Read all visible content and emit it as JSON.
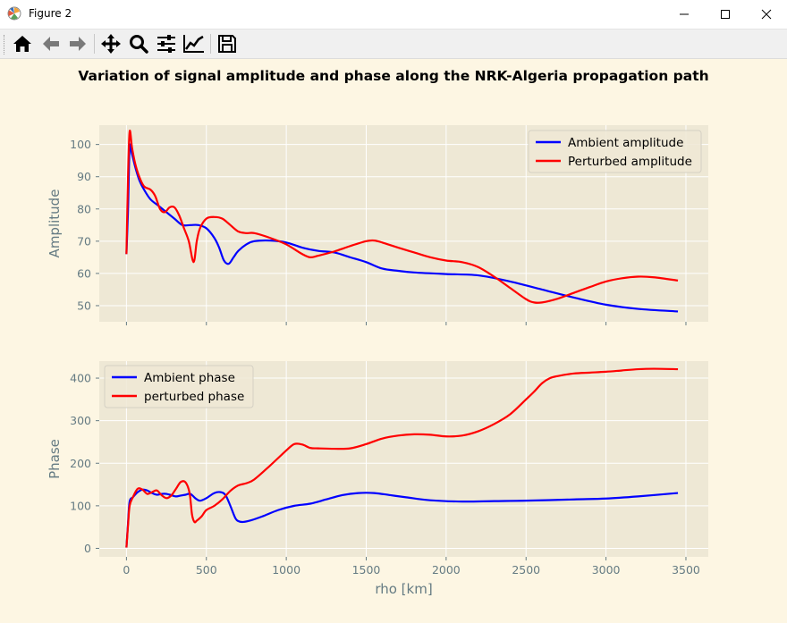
{
  "window": {
    "title": "Figure 2",
    "icons": [
      "matplotlib-logo-icon",
      "minimize-icon",
      "maximize-icon",
      "close-icon"
    ]
  },
  "toolbar": {
    "buttons": [
      {
        "name": "home-button",
        "icon": "home-icon"
      },
      {
        "name": "back-button",
        "icon": "arrow-left-icon"
      },
      {
        "name": "forward-button",
        "icon": "arrow-right-icon"
      },
      {
        "name": "pan-button",
        "icon": "move-icon"
      },
      {
        "name": "zoom-button",
        "icon": "magnifier-icon"
      },
      {
        "name": "subplots-button",
        "icon": "sliders-icon"
      },
      {
        "name": "axes-button",
        "icon": "line-chart-icon"
      },
      {
        "name": "save-button",
        "icon": "floppy-disk-icon"
      }
    ]
  },
  "colors": {
    "figure_bg": "#fdf6e3",
    "axes_bg": "#eee8d5",
    "grid": "#ffffff",
    "tick_text": "#657b83",
    "ambient": "#0000ff",
    "perturbed": "#ff0000"
  },
  "chart_data": [
    {
      "type": "line",
      "title": "Variation of signal amplitude and phase along the NRK-Algeria propagation path",
      "xlabel": "",
      "ylabel": "Amplitude",
      "xlim": [
        -170,
        3640
      ],
      "ylim": [
        45,
        106
      ],
      "xticks": [
        0,
        500,
        1000,
        1500,
        2000,
        2500,
        3000,
        3500
      ],
      "xticklabels_visible": false,
      "yticks": [
        50,
        60,
        70,
        80,
        90,
        100
      ],
      "yticklabels": [
        "50",
        "60",
        "70",
        "80",
        "90",
        "100"
      ],
      "grid": true,
      "legend": "top-right",
      "series": [
        {
          "name": "Ambient amplitude",
          "color": "#0000ff",
          "x": [
            0,
            10,
            20,
            35,
            55,
            80,
            110,
            150,
            200,
            250,
            300,
            350,
            400,
            450,
            500,
            550,
            580,
            610,
            640,
            670,
            700,
            750,
            800,
            900,
            1000,
            1100,
            1200,
            1300,
            1400,
            1500,
            1600,
            1700,
            1800,
            2000,
            2200,
            2400,
            2600,
            2800,
            3000,
            3200,
            3450
          ],
          "y": [
            66,
            80,
            99,
            97,
            93,
            89,
            86,
            83,
            81,
            79,
            77,
            75,
            75,
            75,
            74,
            71,
            68,
            64,
            63,
            65,
            67,
            69,
            70,
            70.2,
            69.6,
            68,
            67,
            66.5,
            65,
            63.5,
            61.5,
            60.8,
            60.3,
            59.8,
            59.4,
            57.5,
            55,
            52.5,
            50.3,
            49,
            48.2
          ]
        },
        {
          "name": "Perturbed amplitude",
          "color": "#ff0000",
          "x": [
            0,
            10,
            20,
            35,
            55,
            80,
            110,
            150,
            180,
            210,
            240,
            270,
            300,
            330,
            360,
            390,
            420,
            440,
            460,
            500,
            550,
            600,
            650,
            700,
            750,
            800,
            900,
            1000,
            1100,
            1150,
            1200,
            1300,
            1400,
            1500,
            1550,
            1600,
            1700,
            1800,
            1900,
            2000,
            2100,
            2200,
            2300,
            2400,
            2500,
            2550,
            2600,
            2700,
            2800,
            2900,
            3000,
            3100,
            3200,
            3300,
            3450
          ],
          "y": [
            66,
            90,
            104,
            99,
            94,
            90,
            87,
            86,
            84,
            80,
            79,
            80.5,
            80.5,
            78,
            74,
            70,
            63.5,
            70,
            74,
            77,
            77.5,
            77,
            75,
            73,
            72.5,
            72.5,
            71,
            69,
            66,
            65,
            65.5,
            66.8,
            68.5,
            70,
            70.2,
            69.6,
            68,
            66.5,
            65,
            64,
            63.5,
            62,
            59,
            55.5,
            52,
            51,
            51,
            52.2,
            54,
            55.8,
            57.5,
            58.5,
            59,
            58.8,
            57.8
          ]
        }
      ]
    },
    {
      "type": "line",
      "title": "",
      "xlabel": "rho [km]",
      "ylabel": "Phase",
      "xlim": [
        -170,
        3640
      ],
      "ylim": [
        -20,
        440
      ],
      "xticks": [
        0,
        500,
        1000,
        1500,
        2000,
        2500,
        3000,
        3500
      ],
      "xticklabels": [
        "0",
        "500",
        "1000",
        "1500",
        "2000",
        "2500",
        "3000",
        "3500"
      ],
      "xticklabels_visible": true,
      "yticks": [
        0,
        100,
        200,
        300,
        400
      ],
      "yticklabels": [
        "0",
        "100",
        "200",
        "300",
        "400"
      ],
      "grid": true,
      "legend": "top-left",
      "series": [
        {
          "name": "Ambient phase",
          "color": "#0000ff",
          "x": [
            0,
            10,
            20,
            40,
            70,
            100,
            130,
            160,
            190,
            220,
            250,
            280,
            310,
            340,
            370,
            400,
            430,
            460,
            500,
            550,
            590,
            620,
            650,
            680,
            700,
            730,
            780,
            850,
            950,
            1050,
            1150,
            1250,
            1350,
            1450,
            1550,
            1650,
            1750,
            1900,
            2100,
            2300,
            2500,
            2800,
            3000,
            3200,
            3450
          ],
          "y": [
            2,
            60,
            110,
            120,
            132,
            138,
            136,
            130,
            126,
            128,
            128,
            125,
            122,
            124,
            126,
            128,
            118,
            112,
            118,
            130,
            132,
            125,
            100,
            72,
            64,
            62,
            66,
            75,
            90,
            100,
            105,
            115,
            125,
            130,
            130,
            125,
            120,
            113,
            110,
            111,
            112,
            115,
            117,
            122,
            130
          ]
        },
        {
          "name": "perturbed phase",
          "color": "#ff0000",
          "x": [
            0,
            10,
            20,
            40,
            70,
            100,
            130,
            160,
            190,
            220,
            250,
            280,
            310,
            340,
            370,
            395,
            410,
            425,
            440,
            470,
            500,
            550,
            600,
            650,
            700,
            750,
            800,
            900,
            1000,
            1050,
            1100,
            1150,
            1200,
            1300,
            1400,
            1500,
            1600,
            1700,
            1800,
            1900,
            2000,
            2100,
            2200,
            2300,
            2400,
            2500,
            2550,
            2600,
            2650,
            2700,
            2800,
            2900,
            3000,
            3100,
            3200,
            3300,
            3450
          ],
          "y": [
            2,
            55,
            100,
            120,
            140,
            138,
            128,
            132,
            136,
            125,
            118,
            124,
            140,
            156,
            155,
            130,
            80,
            62,
            65,
            75,
            90,
            100,
            115,
            135,
            148,
            153,
            162,
            195,
            230,
            245,
            244,
            236,
            235,
            234,
            235,
            245,
            258,
            265,
            268,
            267,
            263,
            265,
            275,
            292,
            315,
            350,
            368,
            388,
            400,
            405,
            411,
            413,
            415,
            418,
            421,
            422,
            421
          ]
        }
      ]
    }
  ]
}
